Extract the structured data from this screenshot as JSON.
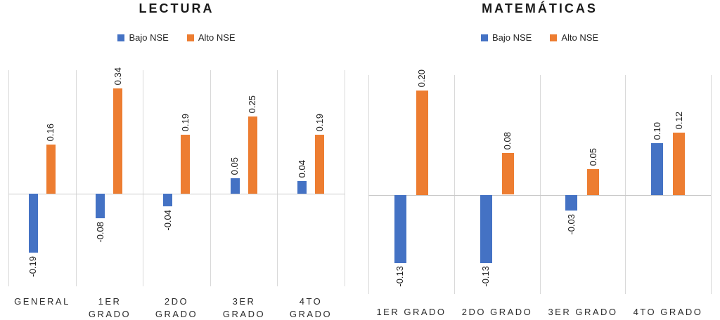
{
  "chart_data": [
    {
      "type": "bar",
      "title": "LECTURA",
      "categories": [
        "GENERAL",
        "1ER GRADO",
        "2DO GRADO",
        "3ER GRADO",
        "4TO GRADO"
      ],
      "series": [
        {
          "name": "Bajo NSE",
          "color": "#4472C4",
          "values": [
            -0.19,
            -0.08,
            -0.04,
            0.05,
            0.04
          ]
        },
        {
          "name": "Alto NSE",
          "color": "#ED7D31",
          "values": [
            0.16,
            0.34,
            0.19,
            0.25,
            0.19
          ]
        }
      ],
      "ylim": [
        -0.3,
        0.4
      ],
      "grid": "vertical-category-lines-only",
      "legend_position": "top",
      "data_labels": {
        "rotation": -90,
        "format": "two-decimals"
      }
    },
    {
      "type": "bar",
      "title": "MATEMÁTICAS",
      "categories": [
        "1ER GRADO",
        "2DO GRADO",
        "3ER GRADO",
        "4TO GRADO"
      ],
      "series": [
        {
          "name": "Bajo NSE",
          "color": "#4472C4",
          "values": [
            -0.13,
            -0.13,
            -0.03,
            0.1
          ]
        },
        {
          "name": "Alto NSE",
          "color": "#ED7D31",
          "values": [
            0.2,
            0.08,
            0.05,
            0.12
          ]
        }
      ],
      "ylim": [
        -0.19,
        0.23
      ],
      "grid": "vertical-category-lines-only",
      "legend_position": "top",
      "data_labels": {
        "rotation": -90,
        "format": "two-decimals"
      }
    }
  ],
  "colors": {
    "bajo_nse": "#4472C4",
    "alto_nse": "#ED7D31",
    "gridline": "#D9D9D9",
    "text": "#1A1A1A"
  }
}
